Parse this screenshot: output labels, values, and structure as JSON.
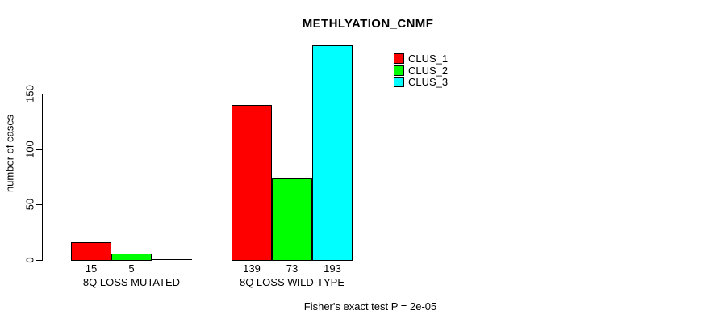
{
  "chart_data": {
    "type": "bar",
    "title": "METHLYATION_CNMF",
    "xlabel": "",
    "ylabel": "number of cases",
    "categories": [
      "8Q LOSS MUTATED",
      "8Q LOSS WILD-TYPE"
    ],
    "series": [
      {
        "name": "CLUS_1",
        "color": "#ff0000",
        "values": [
          15,
          139
        ]
      },
      {
        "name": "CLUS_2",
        "color": "#00ff00",
        "values": [
          5,
          73
        ]
      },
      {
        "name": "CLUS_3",
        "color": "#00ffff",
        "values": [
          0,
          193
        ]
      }
    ],
    "value_labels": [
      [
        "15",
        "5",
        null
      ],
      [
        "139",
        "73",
        "193"
      ]
    ],
    "yticks": [
      0,
      50,
      100,
      150
    ],
    "ylim": [
      0,
      193
    ],
    "grid": false,
    "legend_position": "top-right",
    "annotation": "Fisher's exact test P = 2e-05",
    "colors": {
      "background": "#ffffff",
      "axis": "#000000",
      "bar_border": "#000000"
    }
  }
}
